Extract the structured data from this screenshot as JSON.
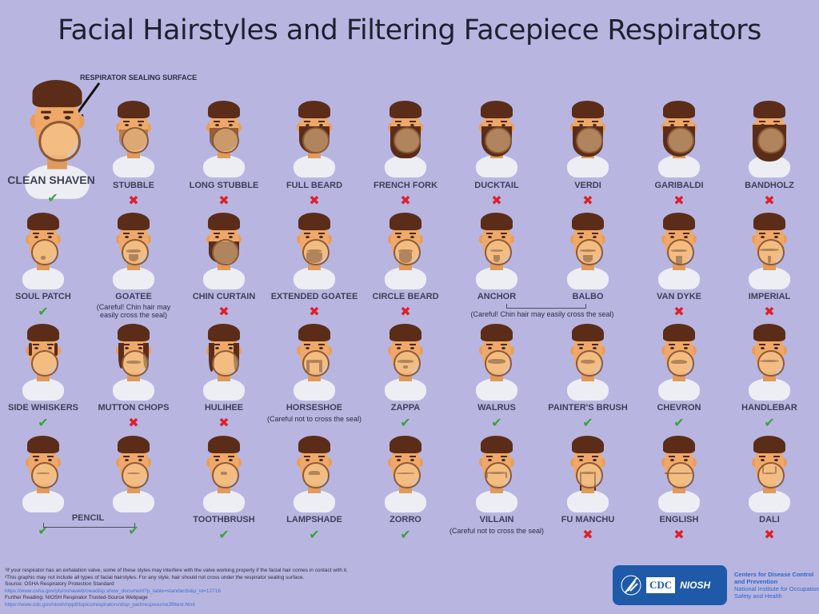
{
  "title": "Facial Hairstyles and Filtering Facepiece Respirators",
  "sealing_surface_label": "RESPIRATOR SEALING SURFACE",
  "colors": {
    "background": "#b8b6e0",
    "check": "#3aa13a",
    "cross": "#e0202a",
    "hair": "#5b2d18",
    "skin": "#f0a868"
  },
  "legend": {
    "ok": "check-icon",
    "no": "cross-icon"
  },
  "clean_shaven": {
    "label": "CLEAN SHAVEN",
    "verdict": "ok",
    "beard": "none"
  },
  "rows": [
    [
      {
        "label": "STUBBLE",
        "verdict": "no",
        "beard": "stubble"
      },
      {
        "label": "LONG STUBBLE",
        "verdict": "no",
        "beard": "longstubble"
      },
      {
        "label": "FULL BEARD",
        "verdict": "no",
        "beard": "full"
      },
      {
        "label": "FRENCH FORK",
        "verdict": "no",
        "beard": "fork"
      },
      {
        "label": "DUCKTAIL",
        "verdict": "no",
        "beard": "ducktail"
      },
      {
        "label": "VERDI",
        "verdict": "no",
        "beard": "verdi"
      },
      {
        "label": "GARIBALDI",
        "verdict": "no",
        "beard": "garibaldi"
      },
      {
        "label": "BANDHOLZ",
        "verdict": "no",
        "beard": "bandholz"
      }
    ],
    [
      {
        "label": "SOUL PATCH",
        "verdict": "ok",
        "beard": "soulpatch"
      },
      {
        "label": "GOATEE",
        "verdict": "caution",
        "beard": "goatee",
        "note": "(Careful! Chin hair may easily cross the seal)"
      },
      {
        "label": "CHIN CURTAIN",
        "verdict": "no",
        "beard": "chincurtain"
      },
      {
        "label": "EXTENDED GOATEE",
        "verdict": "no",
        "beard": "extgoatee"
      },
      {
        "label": "CIRCLE BEARD",
        "verdict": "no",
        "beard": "circle"
      },
      {
        "label": "ANCHOR",
        "verdict": "caution",
        "beard": "anchor"
      },
      {
        "label": "BALBO",
        "verdict": "caution",
        "beard": "balbo"
      },
      {
        "label": "VAN DYKE",
        "verdict": "no",
        "beard": "vandyke"
      },
      {
        "label": "IMPERIAL",
        "verdict": "no",
        "beard": "imperial"
      }
    ],
    [
      {
        "label": "SIDE WHISKERS",
        "verdict": "ok",
        "beard": "sidewhiskers"
      },
      {
        "label": "MUTTON CHOPS",
        "verdict": "no",
        "beard": "mutton"
      },
      {
        "label": "HULIHEE",
        "verdict": "no",
        "beard": "hulihee"
      },
      {
        "label": "HORSESHOE",
        "verdict": "caution",
        "beard": "horseshoe",
        "note": "(Careful not to cross the seal)"
      },
      {
        "label": "ZAPPA",
        "verdict": "ok",
        "beard": "zappa"
      },
      {
        "label": "WALRUS",
        "verdict": "ok",
        "beard": "walrus"
      },
      {
        "label": "PAINTER'S BRUSH",
        "verdict": "ok",
        "beard": "painter"
      },
      {
        "label": "CHEVRON",
        "verdict": "ok",
        "beard": "chevron"
      },
      {
        "label": "HANDLEBAR",
        "verdict": "ok",
        "beard": "handlebar"
      }
    ],
    [
      {
        "label": "",
        "verdict": "ok",
        "beard": "pencil"
      },
      {
        "label": "",
        "verdict": "ok",
        "beard": "pencil"
      },
      {
        "label": "TOOTHBRUSH",
        "verdict": "ok",
        "beard": "toothbrush"
      },
      {
        "label": "LAMPSHADE",
        "verdict": "ok",
        "beard": "lampshade"
      },
      {
        "label": "ZORRO",
        "verdict": "ok",
        "beard": "zorro"
      },
      {
        "label": "VILLAIN",
        "verdict": "caution",
        "beard": "villain",
        "note": "(Careful not to cross the seal)"
      },
      {
        "label": "FU MANCHU",
        "verdict": "no",
        "beard": "fumanchu"
      },
      {
        "label": "ENGLISH",
        "verdict": "no",
        "beard": "english"
      },
      {
        "label": "DALI",
        "verdict": "no",
        "beard": "dali"
      }
    ]
  ],
  "groups": {
    "pencil_label": "PENCIL",
    "anchor_balbo_note": "(Careful! Chin hair may easily cross the seal)"
  },
  "footer": {
    "note1": "¹If your respirator has an exhalation valve, some of these styles may interfere with the valve working properly if the facial hair comes in contact with it.",
    "note2": "²This graphic may not include all types of facial hairstyles. For any style, hair should not cross under the respirator sealing surface.",
    "source": "Source: OSHA Respiratory Protection Standard",
    "source_url": "https://www.osha.gov/pls/oshaweb/owadisp.show_document?p_table=standards&p_id=12716",
    "further": "Further Reading: NIOSH Respirator Trusted-Source Webpage",
    "further_url": "https://www.cdc.gov/niosh/npptl/topics/respirators/disp_part/respsource3fittest.html"
  },
  "logo": {
    "cdc": "CDC",
    "niosh": "NIOSH",
    "agency_line1": "Centers for Disease Control",
    "agency_line2": "and Prevention",
    "agency_line3": "National Institute for Occupational",
    "agency_line4": "Safety and Health"
  }
}
